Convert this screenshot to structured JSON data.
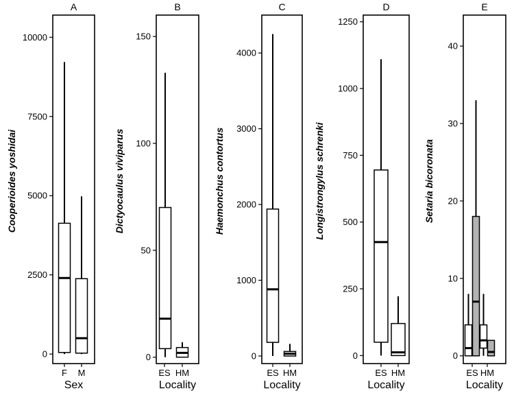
{
  "chart_data": [
    {
      "type": "boxplot",
      "panel": "A",
      "ylabel": "Cooperioides yoshidai",
      "xlabel": "Sex",
      "ylim": [
        -300,
        10700
      ],
      "yticks": [
        0,
        2500,
        5000,
        7500,
        10000
      ],
      "ytick_labels": [
        "0",
        "2500",
        "5000",
        "7500",
        "10000"
      ],
      "categories": [
        "F",
        "M"
      ],
      "boxes": [
        {
          "category": "F",
          "min": 0,
          "q1": 50,
          "median": 2400,
          "q3": 4130,
          "max": 9220,
          "fill": "#ffffff"
        },
        {
          "category": "M",
          "min": 0,
          "q1": 30,
          "median": 500,
          "q3": 2380,
          "max": 4980,
          "fill": "#ffffff"
        }
      ]
    },
    {
      "type": "boxplot",
      "panel": "B",
      "ylabel": "Dictyocaulus viviparus",
      "xlabel": "Locality",
      "ylim": [
        -3,
        160
      ],
      "yticks": [
        0,
        50,
        100,
        150
      ],
      "ytick_labels": [
        "0",
        "50",
        "100",
        "150"
      ],
      "categories": [
        "ES",
        "HM"
      ],
      "boxes": [
        {
          "category": "ES",
          "min": 0,
          "q1": 4,
          "median": 18,
          "q3": 70,
          "max": 133,
          "fill": "#ffffff"
        },
        {
          "category": "HM",
          "min": 0,
          "q1": 0,
          "median": 2,
          "q3": 4.5,
          "max": 7,
          "fill": "#ffffff"
        }
      ]
    },
    {
      "type": "boxplot",
      "panel": "C",
      "ylabel": "Haemonchus contortus",
      "xlabel": "Locality",
      "ylim": [
        -100,
        4500
      ],
      "yticks": [
        0,
        1000,
        2000,
        3000,
        4000
      ],
      "ytick_labels": [
        "0",
        "1000",
        "2000",
        "3000",
        "4000"
      ],
      "categories": [
        "ES",
        "HM"
      ],
      "boxes": [
        {
          "category": "ES",
          "min": 0,
          "q1": 180,
          "median": 880,
          "q3": 1940,
          "max": 4250,
          "fill": "#ffffff"
        },
        {
          "category": "HM",
          "min": 0,
          "q1": 0,
          "median": 30,
          "q3": 60,
          "max": 160,
          "fill": "#ffffff"
        }
      ]
    },
    {
      "type": "boxplot",
      "panel": "D",
      "ylabel": "Longistrongylus schrenki",
      "xlabel": "Locality",
      "ylim": [
        -30,
        1275
      ],
      "yticks": [
        0,
        250,
        500,
        750,
        1000,
        1250
      ],
      "ytick_labels": [
        "0",
        "250",
        "500",
        "750",
        "1000",
        "1250"
      ],
      "categories": [
        "ES",
        "HM"
      ],
      "boxes": [
        {
          "category": "ES",
          "min": 0,
          "q1": 50,
          "median": 425,
          "q3": 695,
          "max": 1110,
          "fill": "#ffffff"
        },
        {
          "category": "HM",
          "min": 0,
          "q1": 0,
          "median": 12,
          "q3": 120,
          "max": 222,
          "fill": "#ffffff"
        }
      ]
    },
    {
      "type": "boxplot",
      "panel": "E",
      "ylabel": "Setaria bicoronata",
      "xlabel": "Locality",
      "ylim": [
        -1,
        44
      ],
      "yticks": [
        0,
        10,
        20,
        30,
        40
      ],
      "ytick_labels": [
        "0",
        "10",
        "20",
        "30",
        "40"
      ],
      "categories": [
        "ES",
        "HM"
      ],
      "boxes": [
        {
          "category": "ES",
          "position": -0.5,
          "min": 0,
          "q1": 0,
          "median": 1,
          "q3": 4,
          "max": 8,
          "fill": "#ffffff"
        },
        {
          "category": "ES",
          "position": 0.5,
          "min": 0,
          "q1": 0,
          "median": 7,
          "q3": 18,
          "max": 33,
          "fill": "#b3b3b3"
        },
        {
          "category": "HM",
          "position": 1.5,
          "min": 0,
          "q1": 1,
          "median": 2,
          "q3": 4,
          "max": 8,
          "fill": "#ffffff"
        },
        {
          "category": "HM",
          "position": 2.5,
          "min": 0,
          "q1": 0,
          "median": 0.5,
          "q3": 2,
          "max": 2,
          "fill": "#b3b3b3"
        }
      ]
    }
  ]
}
